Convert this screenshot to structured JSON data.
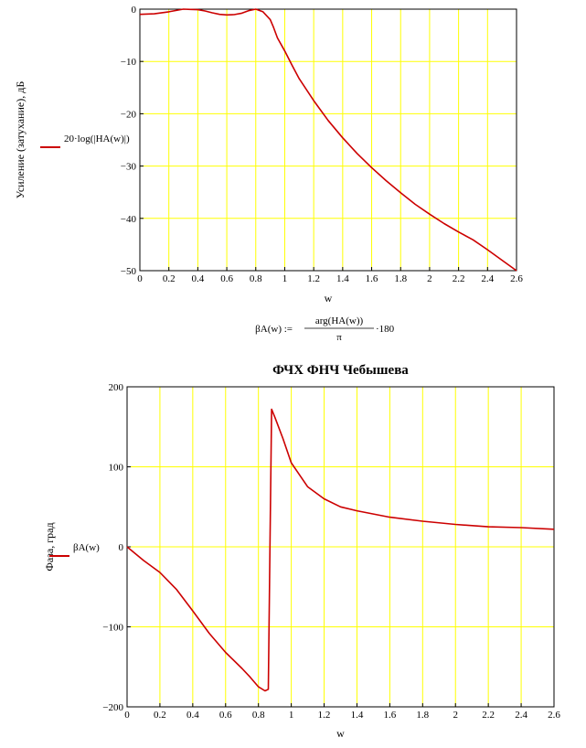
{
  "chart_data": [
    {
      "type": "line",
      "title": "",
      "xlabel": "w",
      "ylabel": "Усиление (затухание), дБ",
      "legend": "20·log(|HA(w)|)",
      "xlim": [
        0,
        2.6
      ],
      "ylim": [
        -50,
        0
      ],
      "xticks": [
        "0",
        "0.2",
        "0.4",
        "0.6",
        "0.8",
        "1",
        "1.2",
        "1.4",
        "1.6",
        "1.8",
        "2",
        "2.2",
        "2.4",
        "2.6"
      ],
      "yticks": [
        "0",
        "−10",
        "−20",
        "−30",
        "−40",
        "−50"
      ],
      "grid": true,
      "colors": {
        "line": "#cc0000",
        "grid": "#ffff00",
        "background": "#ffffff"
      },
      "series": [
        {
          "x": [
            0,
            0.1,
            0.2,
            0.3,
            0.35,
            0.4,
            0.45,
            0.5,
            0.55,
            0.6,
            0.65,
            0.7,
            0.75,
            0.8,
            0.85,
            0.9,
            0.92,
            0.95,
            1.0,
            1.05,
            1.1,
            1.2,
            1.3,
            1.4,
            1.5,
            1.6,
            1.7,
            1.8,
            1.9,
            2.0,
            2.1,
            2.2,
            2.3,
            2.4,
            2.5,
            2.6
          ],
          "y": [
            -1.0,
            -0.9,
            -0.5,
            0,
            -0.05,
            -0.1,
            -0.35,
            -0.7,
            -1.0,
            -1.1,
            -1.05,
            -0.8,
            -0.3,
            0,
            -0.5,
            -2.0,
            -3.3,
            -5.5,
            -8.0,
            -10.7,
            -13.3,
            -17.5,
            -21.3,
            -24.6,
            -27.6,
            -30.3,
            -32.8,
            -35.1,
            -37.3,
            -39.2,
            -41.0,
            -42.6,
            -44.1,
            -46.0,
            -48.0,
            -50.0
          ]
        }
      ]
    },
    {
      "type": "line",
      "title": "ФЧХ ФНЧ Чебышева",
      "xlabel": "w",
      "ylabel": "Фаза, град",
      "legend": "βA(w)",
      "xlim": [
        0,
        2.6
      ],
      "ylim": [
        -200,
        200
      ],
      "xticks": [
        "0",
        "0.2",
        "0.4",
        "0.6",
        "0.8",
        "1",
        "1.2",
        "1.4",
        "1.6",
        "1.8",
        "2",
        "2.2",
        "2.4",
        "2.6"
      ],
      "yticks": [
        "200",
        "100",
        "0",
        "−100",
        "−200"
      ],
      "grid": true,
      "colors": {
        "line": "#cc0000",
        "grid": "#ffff00",
        "background": "#ffffff"
      },
      "series": [
        {
          "x": [
            0,
            0.1,
            0.2,
            0.3,
            0.4,
            0.5,
            0.6,
            0.7,
            0.75,
            0.8,
            0.84,
            0.86,
            0.87,
            0.88,
            0.9,
            0.95,
            1.0,
            1.1,
            1.2,
            1.3,
            1.4,
            1.6,
            1.8,
            2.0,
            2.2,
            2.4,
            2.6
          ],
          "y": [
            0,
            -17,
            -32,
            -53,
            -80,
            -108,
            -132,
            -152,
            -163,
            -175,
            -180,
            -178,
            0,
            172,
            162,
            135,
            105,
            75,
            60,
            50,
            45,
            37,
            32,
            28,
            25,
            24,
            22
          ]
        }
      ]
    }
  ],
  "formula": {
    "lhs": "βA(w) :=",
    "numerator": "arg(HA(w))",
    "denominator": "π",
    "multiplier": "·180"
  }
}
